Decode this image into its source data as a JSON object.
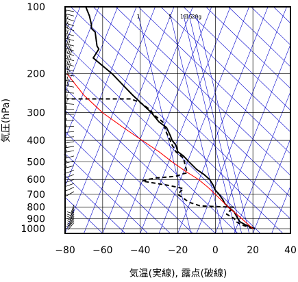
{
  "chart_data": {
    "type": "line",
    "xlabel": "気温(実線), 露点(破線)",
    "ylabel": "気圧(hPa)",
    "xlim": [
      -80,
      40
    ],
    "ylim": [
      1050,
      100
    ],
    "y_scale": "log",
    "x_ticks": [
      "−80",
      "−60",
      "−40",
      "−20",
      "0",
      "20",
      "40"
    ],
    "x_tick_values": [
      -80,
      -60,
      -40,
      -20,
      0,
      20,
      40
    ],
    "y_ticks": [
      "100",
      "200",
      "300",
      "400",
      "500",
      "600",
      "700",
      "800",
      "900",
      "1000"
    ],
    "y_tick_values": [
      100,
      200,
      300,
      400,
      500,
      600,
      700,
      800,
      900,
      1000
    ],
    "mixing_ratio_labels": [
      "1",
      "5",
      "10",
      "15",
      "20g"
    ],
    "mixing_ratio_label_positions": [
      -41,
      -24,
      -17,
      -14,
      -10
    ],
    "colors": {
      "temperature": "#000000",
      "dewpoint": "#000000",
      "reference": "#ff0000",
      "isotherm_adiabat": "#0000cc",
      "grid": "#000000"
    },
    "series": [
      {
        "key": "temperature",
        "style": "solid",
        "points": [
          [
            21,
            1000
          ],
          [
            16,
            960
          ],
          [
            13,
            930
          ],
          [
            12,
            900
          ],
          [
            11,
            870
          ],
          [
            10,
            840
          ],
          [
            7,
            800
          ],
          [
            5,
            770
          ],
          [
            4,
            740
          ],
          [
            2,
            700
          ],
          [
            0,
            670
          ],
          [
            -1,
            640
          ],
          [
            -3,
            600
          ],
          [
            -6,
            570
          ],
          [
            -10,
            540
          ],
          [
            -14,
            500
          ],
          [
            -17,
            470
          ],
          [
            -20,
            450
          ],
          [
            -21,
            420
          ],
          [
            -23,
            400
          ],
          [
            -24,
            380
          ],
          [
            -26,
            350
          ],
          [
            -30,
            330
          ],
          [
            -34,
            300
          ],
          [
            -44,
            250
          ],
          [
            -55,
            200
          ],
          [
            -65,
            170
          ],
          [
            -62,
            155
          ],
          [
            -63,
            150
          ],
          [
            -64,
            130
          ],
          [
            -66,
            125
          ],
          [
            -66,
            120
          ],
          [
            -67,
            110
          ],
          [
            -69,
            100
          ]
        ]
      },
      {
        "key": "dewpoint",
        "style": "dashed",
        "points": [
          [
            20,
            1000
          ],
          [
            14,
            960
          ],
          [
            11,
            930
          ],
          [
            10,
            900
          ],
          [
            8,
            880
          ],
          [
            6,
            860
          ],
          [
            7,
            840
          ],
          [
            10,
            800
          ],
          [
            -8,
            790
          ],
          [
            -14,
            760
          ],
          [
            -20,
            700
          ],
          [
            -17,
            660
          ],
          [
            -24,
            640
          ],
          [
            -34,
            620
          ],
          [
            -39,
            610
          ],
          [
            -36,
            600
          ],
          [
            -31,
            590
          ],
          [
            -21,
            580
          ],
          [
            -17,
            565
          ],
          [
            -15,
            560
          ],
          [
            -16,
            520
          ],
          [
            -17,
            480
          ],
          [
            -21,
            450
          ],
          [
            -23,
            420
          ],
          [
            -24,
            400
          ],
          [
            -26,
            370
          ],
          [
            -28,
            330
          ],
          [
            -32,
            310
          ],
          [
            -35,
            290
          ],
          [
            -40,
            270
          ],
          [
            -45,
            260
          ],
          [
            -79,
            260
          ]
        ]
      },
      {
        "key": "reference",
        "style": "solid",
        "points": [
          [
            20,
            1000
          ],
          [
            14,
            900
          ],
          [
            7,
            800
          ],
          [
            0,
            700
          ],
          [
            -4,
            650
          ],
          [
            -9,
            600
          ],
          [
            -16,
            550
          ],
          [
            -23,
            500
          ],
          [
            -30,
            450
          ],
          [
            -39,
            400
          ],
          [
            -49,
            350
          ],
          [
            -60,
            300
          ],
          [
            -70,
            250
          ],
          [
            -79,
            200
          ]
        ]
      }
    ],
    "wind_barbs": [
      {
        "p": 105,
        "speed": 5,
        "dir": 280
      },
      {
        "p": 110,
        "speed": 10,
        "dir": 285
      },
      {
        "p": 116,
        "speed": 15,
        "dir": 290
      },
      {
        "p": 122,
        "speed": 15,
        "dir": 290
      },
      {
        "p": 128,
        "speed": 20,
        "dir": 290
      },
      {
        "p": 135,
        "speed": 20,
        "dir": 285
      },
      {
        "p": 142,
        "speed": 25,
        "dir": 285
      },
      {
        "p": 150,
        "speed": 30,
        "dir": 285
      },
      {
        "p": 158,
        "speed": 35,
        "dir": 290
      },
      {
        "p": 166,
        "speed": 40,
        "dir": 290
      },
      {
        "p": 175,
        "speed": 35,
        "dir": 285
      },
      {
        "p": 185,
        "speed": 35,
        "dir": 285
      },
      {
        "p": 195,
        "speed": 30,
        "dir": 285
      },
      {
        "p": 205,
        "speed": 30,
        "dir": 280
      },
      {
        "p": 218,
        "speed": 25,
        "dir": 280
      },
      {
        "p": 230,
        "speed": 25,
        "dir": 280
      },
      {
        "p": 245,
        "speed": 25,
        "dir": 275
      },
      {
        "p": 260,
        "speed": 20,
        "dir": 275
      },
      {
        "p": 275,
        "speed": 20,
        "dir": 275
      },
      {
        "p": 290,
        "speed": 20,
        "dir": 270
      },
      {
        "p": 305,
        "speed": 15,
        "dir": 270
      },
      {
        "p": 325,
        "speed": 15,
        "dir": 270
      },
      {
        "p": 345,
        "speed": 15,
        "dir": 265
      },
      {
        "p": 365,
        "speed": 10,
        "dir": 265
      },
      {
        "p": 385,
        "speed": 10,
        "dir": 265
      },
      {
        "p": 405,
        "speed": 10,
        "dir": 260
      },
      {
        "p": 425,
        "speed": 15,
        "dir": 260
      },
      {
        "p": 445,
        "speed": 15,
        "dir": 260
      },
      {
        "p": 470,
        "speed": 15,
        "dir": 255
      },
      {
        "p": 495,
        "speed": 15,
        "dir": 255
      },
      {
        "p": 520,
        "speed": 15,
        "dir": 255
      },
      {
        "p": 545,
        "speed": 10,
        "dir": 250
      },
      {
        "p": 570,
        "speed": 10,
        "dir": 250
      },
      {
        "p": 600,
        "speed": 10,
        "dir": 250
      },
      {
        "p": 625,
        "speed": 5,
        "dir": 250
      },
      {
        "p": 650,
        "speed": 5,
        "dir": 245
      },
      {
        "p": 680,
        "speed": 5,
        "dir": 240
      },
      {
        "p": 780,
        "speed": 10,
        "dir": 200
      },
      {
        "p": 800,
        "speed": 10,
        "dir": 200
      },
      {
        "p": 820,
        "speed": 10,
        "dir": 205
      },
      {
        "p": 840,
        "speed": 10,
        "dir": 205
      },
      {
        "p": 860,
        "speed": 5,
        "dir": 210
      },
      {
        "p": 880,
        "speed": 5,
        "dir": 210
      },
      {
        "p": 900,
        "speed": 5,
        "dir": 215
      },
      {
        "p": 920,
        "speed": 5,
        "dir": 220
      },
      {
        "p": 940,
        "speed": 5,
        "dir": 220
      }
    ]
  }
}
